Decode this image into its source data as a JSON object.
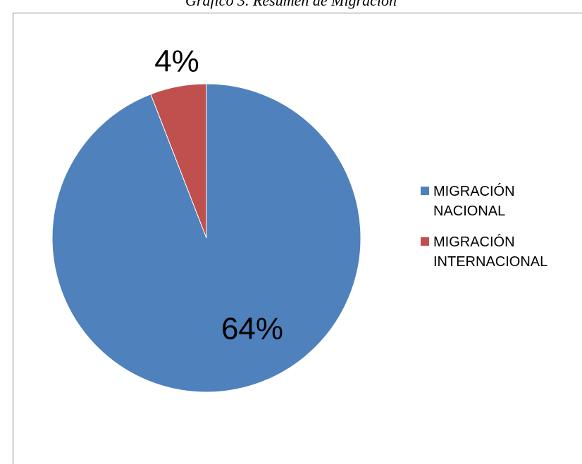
{
  "chart_data": {
    "type": "pie",
    "title": "Gráfico 3. Resumen de Migración",
    "categories": [
      "MIGRACIÓN NACIONAL",
      "MIGRACIÓN INTERNACIONAL"
    ],
    "values": [
      64,
      4
    ],
    "value_labels": [
      "64%",
      "4%"
    ],
    "colors": [
      "#4f81bd",
      "#c0504d"
    ],
    "legend": "right"
  }
}
